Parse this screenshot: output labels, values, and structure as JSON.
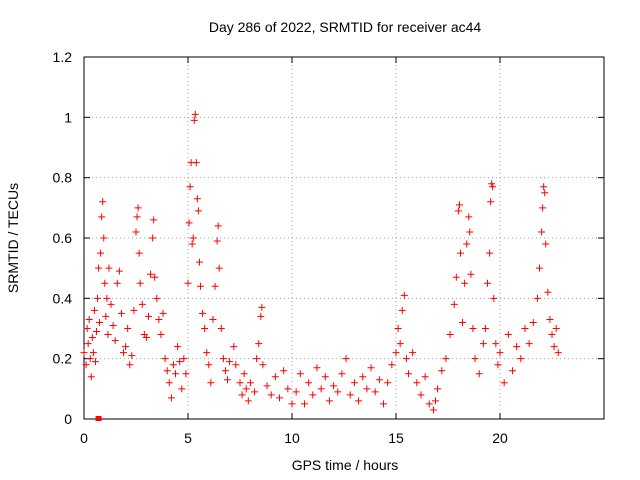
{
  "chart_data": {
    "type": "scatter",
    "title": "Day 286 of 2022, SRMTID for receiver ac44",
    "xlabel": "GPS time / hours",
    "ylabel": "SRMTID / TECUs",
    "xlim": [
      0,
      25
    ],
    "ylim": [
      0,
      1.2
    ],
    "x_ticks": [
      0,
      5,
      10,
      15,
      20
    ],
    "x_tick_labels": [
      "0",
      "5",
      "10",
      "15",
      "20"
    ],
    "y_ticks": [
      0,
      0.2,
      0.4,
      0.6,
      0.8,
      1,
      1.2
    ],
    "y_tick_labels": [
      "0",
      "0.2",
      "0.4",
      "0.6",
      "0.8",
      "1",
      "1.2"
    ],
    "grid": true,
    "marker": "plus",
    "color": "#ff0000",
    "series": [
      {
        "name": "SRMTID",
        "points": [
          [
            0.0,
            0.22
          ],
          [
            0.1,
            0.18
          ],
          [
            0.15,
            0.3
          ],
          [
            0.2,
            0.25
          ],
          [
            0.25,
            0.33
          ],
          [
            0.3,
            0.2
          ],
          [
            0.35,
            0.14
          ],
          [
            0.4,
            0.27
          ],
          [
            0.45,
            0.22
          ],
          [
            0.5,
            0.36
          ],
          [
            0.55,
            0.19
          ],
          [
            0.6,
            0.29
          ],
          [
            0.65,
            0.4
          ],
          [
            0.7,
            0.5
          ],
          [
            0.75,
            0.32
          ],
          [
            0.8,
            0.55
          ],
          [
            0.85,
            0.67
          ],
          [
            0.9,
            0.72
          ],
          [
            0.95,
            0.6
          ],
          [
            1.0,
            0.45
          ],
          [
            1.05,
            0.34
          ],
          [
            1.1,
            0.4
          ],
          [
            1.15,
            0.28
          ],
          [
            1.2,
            0.5
          ],
          [
            1.3,
            0.38
          ],
          [
            1.4,
            0.31
          ],
          [
            1.5,
            0.26
          ],
          [
            1.6,
            0.45
          ],
          [
            1.7,
            0.49
          ],
          [
            1.8,
            0.35
          ],
          [
            1.9,
            0.22
          ],
          [
            2.0,
            0.24
          ],
          [
            2.1,
            0.3
          ],
          [
            2.2,
            0.18
          ],
          [
            2.3,
            0.21
          ],
          [
            2.4,
            0.36
          ],
          [
            2.5,
            0.62
          ],
          [
            2.55,
            0.67
          ],
          [
            2.6,
            0.7
          ],
          [
            2.65,
            0.55
          ],
          [
            2.7,
            0.45
          ],
          [
            2.8,
            0.38
          ],
          [
            2.9,
            0.28
          ],
          [
            3.0,
            0.27
          ],
          [
            3.1,
            0.34
          ],
          [
            3.2,
            0.48
          ],
          [
            3.3,
            0.6
          ],
          [
            3.35,
            0.66
          ],
          [
            3.4,
            0.47
          ],
          [
            3.5,
            0.4
          ],
          [
            3.6,
            0.33
          ],
          [
            3.7,
            0.28
          ],
          [
            3.8,
            0.35
          ],
          [
            3.9,
            0.2
          ],
          [
            4.0,
            0.16
          ],
          [
            4.1,
            0.12
          ],
          [
            4.2,
            0.07
          ],
          [
            4.3,
            0.18
          ],
          [
            4.4,
            0.15
          ],
          [
            4.5,
            0.24
          ],
          [
            4.6,
            0.19
          ],
          [
            4.7,
            0.1
          ],
          [
            4.8,
            0.2
          ],
          [
            4.9,
            0.15
          ],
          [
            5.0,
            0.45
          ],
          [
            5.05,
            0.65
          ],
          [
            5.1,
            0.77
          ],
          [
            5.15,
            0.85
          ],
          [
            5.2,
            0.58
          ],
          [
            5.25,
            0.6
          ],
          [
            5.3,
            0.99
          ],
          [
            5.35,
            1.01
          ],
          [
            5.4,
            0.85
          ],
          [
            5.45,
            0.73
          ],
          [
            5.5,
            0.69
          ],
          [
            5.55,
            0.52
          ],
          [
            5.6,
            0.44
          ],
          [
            5.7,
            0.35
          ],
          [
            5.8,
            0.3
          ],
          [
            5.9,
            0.22
          ],
          [
            6.0,
            0.18
          ],
          [
            6.1,
            0.12
          ],
          [
            6.2,
            0.33
          ],
          [
            6.3,
            0.44
          ],
          [
            6.4,
            0.59
          ],
          [
            6.45,
            0.64
          ],
          [
            6.5,
            0.5
          ],
          [
            6.6,
            0.3
          ],
          [
            6.7,
            0.2
          ],
          [
            6.8,
            0.16
          ],
          [
            6.9,
            0.13
          ],
          [
            7.0,
            0.19
          ],
          [
            7.2,
            0.24
          ],
          [
            7.3,
            0.18
          ],
          [
            7.5,
            0.12
          ],
          [
            7.6,
            0.08
          ],
          [
            7.7,
            0.15
          ],
          [
            7.8,
            0.1
          ],
          [
            7.9,
            0.06
          ],
          [
            8.0,
            0.12
          ],
          [
            8.2,
            0.09
          ],
          [
            8.3,
            0.2
          ],
          [
            8.4,
            0.25
          ],
          [
            8.5,
            0.34
          ],
          [
            8.55,
            0.37
          ],
          [
            8.6,
            0.18
          ],
          [
            8.8,
            0.11
          ],
          [
            9.0,
            0.08
          ],
          [
            9.2,
            0.14
          ],
          [
            9.4,
            0.07
          ],
          [
            9.6,
            0.16
          ],
          [
            9.8,
            0.1
          ],
          [
            10.0,
            0.05
          ],
          [
            10.2,
            0.09
          ],
          [
            10.4,
            0.15
          ],
          [
            10.6,
            0.05
          ],
          [
            10.8,
            0.12
          ],
          [
            11.0,
            0.08
          ],
          [
            11.2,
            0.17
          ],
          [
            11.4,
            0.1
          ],
          [
            11.6,
            0.14
          ],
          [
            11.8,
            0.06
          ],
          [
            12.0,
            0.11
          ],
          [
            12.2,
            0.09
          ],
          [
            12.4,
            0.15
          ],
          [
            12.6,
            0.2
          ],
          [
            12.8,
            0.08
          ],
          [
            13.0,
            0.12
          ],
          [
            13.2,
            0.06
          ],
          [
            13.4,
            0.14
          ],
          [
            13.6,
            0.1
          ],
          [
            13.8,
            0.17
          ],
          [
            14.0,
            0.09
          ],
          [
            14.2,
            0.13
          ],
          [
            14.4,
            0.05
          ],
          [
            14.6,
            0.12
          ],
          [
            14.8,
            0.18
          ],
          [
            15.0,
            0.22
          ],
          [
            15.1,
            0.3
          ],
          [
            15.2,
            0.25
          ],
          [
            15.3,
            0.36
          ],
          [
            15.4,
            0.41
          ],
          [
            15.5,
            0.2
          ],
          [
            15.6,
            0.15
          ],
          [
            15.8,
            0.22
          ],
          [
            16.0,
            0.12
          ],
          [
            16.2,
            0.08
          ],
          [
            16.4,
            0.14
          ],
          [
            16.6,
            0.05
          ],
          [
            16.8,
            0.03
          ],
          [
            16.9,
            0.06
          ],
          [
            17.0,
            0.1
          ],
          [
            17.2,
            0.16
          ],
          [
            17.4,
            0.2
          ],
          [
            17.6,
            0.28
          ],
          [
            17.8,
            0.38
          ],
          [
            17.9,
            0.47
          ],
          [
            18.0,
            0.69
          ],
          [
            18.05,
            0.71
          ],
          [
            18.1,
            0.55
          ],
          [
            18.2,
            0.32
          ],
          [
            18.3,
            0.45
          ],
          [
            18.4,
            0.58
          ],
          [
            18.5,
            0.67
          ],
          [
            18.55,
            0.62
          ],
          [
            18.6,
            0.48
          ],
          [
            18.7,
            0.3
          ],
          [
            18.8,
            0.2
          ],
          [
            19.0,
            0.15
          ],
          [
            19.2,
            0.25
          ],
          [
            19.3,
            0.3
          ],
          [
            19.4,
            0.45
          ],
          [
            19.5,
            0.55
          ],
          [
            19.55,
            0.72
          ],
          [
            19.6,
            0.78
          ],
          [
            19.65,
            0.77
          ],
          [
            19.7,
            0.4
          ],
          [
            19.8,
            0.25
          ],
          [
            19.9,
            0.18
          ],
          [
            20.0,
            0.22
          ],
          [
            20.2,
            0.12
          ],
          [
            20.4,
            0.28
          ],
          [
            20.6,
            0.16
          ],
          [
            20.8,
            0.24
          ],
          [
            21.0,
            0.2
          ],
          [
            21.2,
            0.3
          ],
          [
            21.4,
            0.25
          ],
          [
            21.6,
            0.32
          ],
          [
            21.8,
            0.4
          ],
          [
            21.9,
            0.5
          ],
          [
            22.0,
            0.62
          ],
          [
            22.05,
            0.7
          ],
          [
            22.1,
            0.77
          ],
          [
            22.15,
            0.75
          ],
          [
            22.2,
            0.58
          ],
          [
            22.3,
            0.42
          ],
          [
            22.4,
            0.33
          ],
          [
            22.5,
            0.28
          ],
          [
            22.6,
            0.24
          ],
          [
            22.7,
            0.3
          ],
          [
            22.8,
            0.22
          ]
        ]
      }
    ]
  }
}
